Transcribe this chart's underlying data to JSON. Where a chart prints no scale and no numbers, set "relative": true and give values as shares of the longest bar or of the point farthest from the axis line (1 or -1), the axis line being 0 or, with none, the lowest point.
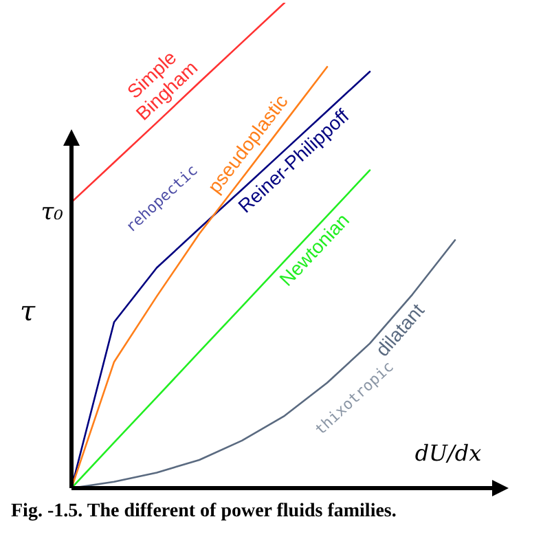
{
  "chart_data": {
    "type": "line",
    "relative": true,
    "title": "Fig. -1.5. The different of power fluids families.",
    "xlabel": "dU/dx",
    "ylabel": "τ",
    "legend": false,
    "marker": "none",
    "line_style": "solid",
    "categories": [
      null,
      null,
      null,
      null,
      null,
      null,
      null,
      null,
      null,
      null,
      null
    ],
    "series": [
      {
        "name": "Simple Bingham",
        "color": "#ff3333",
        "values": [
          0.589,
          0.671,
          0.753,
          0.836,
          0.918,
          1.0,
          null,
          null,
          null,
          null,
          null
        ]
      },
      {
        "name": "pseudoplastic",
        "color": "#ff7f1a",
        "values": [
          0,
          0.26,
          0.395,
          0.524,
          0.638,
          0.753,
          0.868,
          null,
          null,
          null,
          null
        ]
      },
      {
        "name": "Reiner-Philippoff",
        "color": "#000080",
        "values": [
          0,
          0.342,
          0.454,
          0.535,
          0.615,
          0.696,
          0.777,
          0.858,
          null,
          null,
          null
        ]
      },
      {
        "name": "Newtonian",
        "color": "#22ee22",
        "values": [
          0,
          0.094,
          0.187,
          0.281,
          0.374,
          0.468,
          0.561,
          0.655,
          null,
          null,
          null
        ]
      },
      {
        "name": "dilatant",
        "color": "#5a6a80",
        "values": [
          0,
          0.013,
          0.032,
          0.058,
          0.098,
          0.149,
          0.217,
          0.298,
          0.399,
          0.511,
          null
        ]
      }
    ],
    "annotations": [
      "τ₀",
      "rehopectic",
      "thixotropic"
    ]
  }
}
